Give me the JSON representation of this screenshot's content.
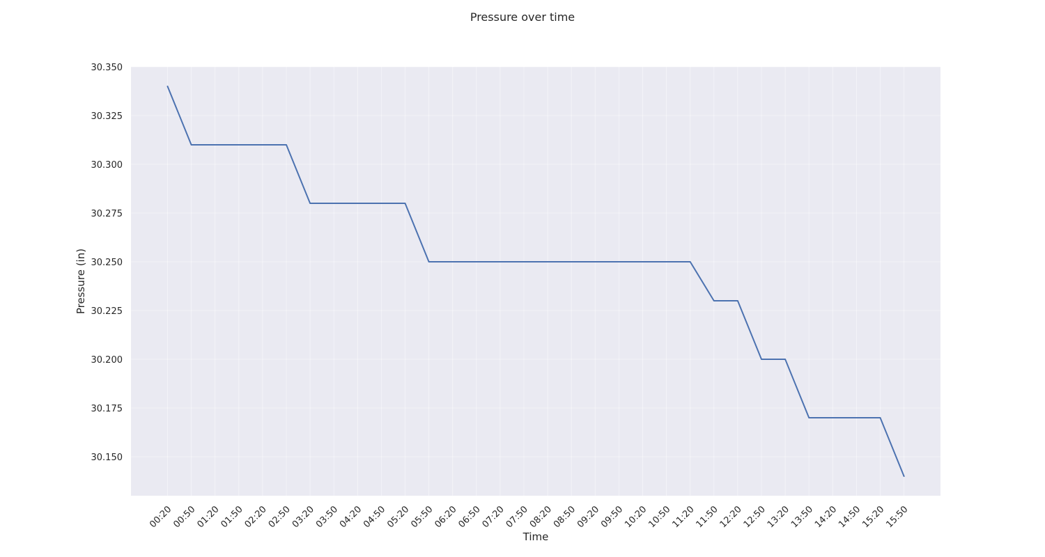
{
  "chart_data": {
    "type": "line",
    "title": "Pressure over time",
    "xlabel": "Time",
    "ylabel": "Pressure (in)",
    "ylim": [
      30.13,
      30.35
    ],
    "grid": true,
    "legend": "none",
    "line_color": "#4c72b0",
    "background_color": "#eaeaf2",
    "y_ticks": [
      "30.150",
      "30.175",
      "30.200",
      "30.225",
      "30.250",
      "30.275",
      "30.300",
      "30.325",
      "30.350"
    ],
    "x_categories": [
      "00:20",
      "00:50",
      "01:20",
      "01:50",
      "02:20",
      "02:50",
      "03:20",
      "03:50",
      "04:20",
      "04:50",
      "05:20",
      "05:50",
      "06:20",
      "06:50",
      "07:20",
      "07:50",
      "08:20",
      "08:50",
      "09:20",
      "09:50",
      "10:20",
      "10:50",
      "11:20",
      "11:50",
      "12:20",
      "12:50",
      "13:20",
      "13:50",
      "14:20",
      "14:50",
      "15:20",
      "15:50"
    ],
    "series": [
      {
        "values": [
          30.34,
          30.31,
          30.31,
          30.31,
          30.31,
          30.31,
          30.28,
          30.28,
          30.28,
          30.28,
          30.28,
          30.25,
          30.25,
          30.25,
          30.25,
          30.25,
          30.25,
          30.25,
          30.25,
          30.25,
          30.25,
          30.25,
          30.25,
          30.23,
          30.23,
          30.2,
          30.2,
          30.17,
          30.17,
          30.17,
          30.17,
          30.14
        ]
      }
    ]
  }
}
